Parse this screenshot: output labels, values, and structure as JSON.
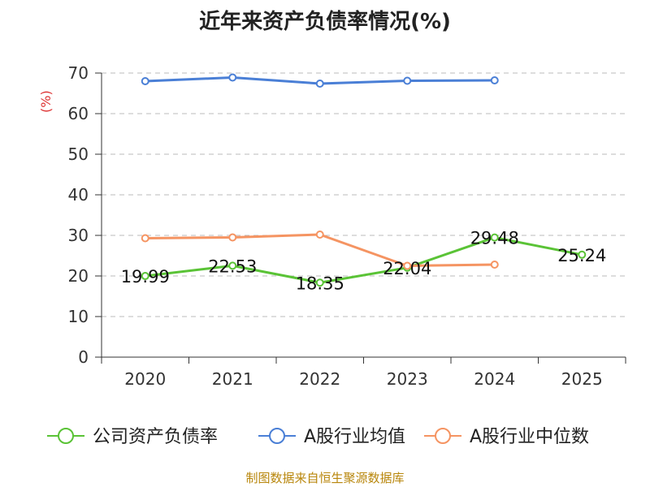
{
  "chart_data": {
    "type": "line",
    "title": "近年来资产负债率情况(%)",
    "ylabel": "(%)",
    "xlabel": "",
    "categories": [
      "2020",
      "2021",
      "2022",
      "2023",
      "2024",
      "2025"
    ],
    "ylim": [
      0,
      70
    ],
    "yticks": [
      0,
      10,
      20,
      30,
      40,
      50,
      60,
      70
    ],
    "grid": true,
    "legend_position": "bottom",
    "series": [
      {
        "name": "公司资产负债率",
        "color": "#5ac336",
        "values": [
          19.99,
          22.53,
          18.35,
          22.04,
          29.48,
          25.24
        ],
        "show_labels": true
      },
      {
        "name": "A股行业均值",
        "color": "#4a7fd6",
        "values": [
          68.0,
          68.9,
          67.4,
          68.1,
          68.2,
          null
        ],
        "show_labels": false
      },
      {
        "name": "A股行业中位数",
        "color": "#f59462",
        "values": [
          29.3,
          29.5,
          30.2,
          22.5,
          22.8,
          null
        ],
        "show_labels": false
      }
    ]
  },
  "source": "制图数据来自恒生聚源数据库"
}
